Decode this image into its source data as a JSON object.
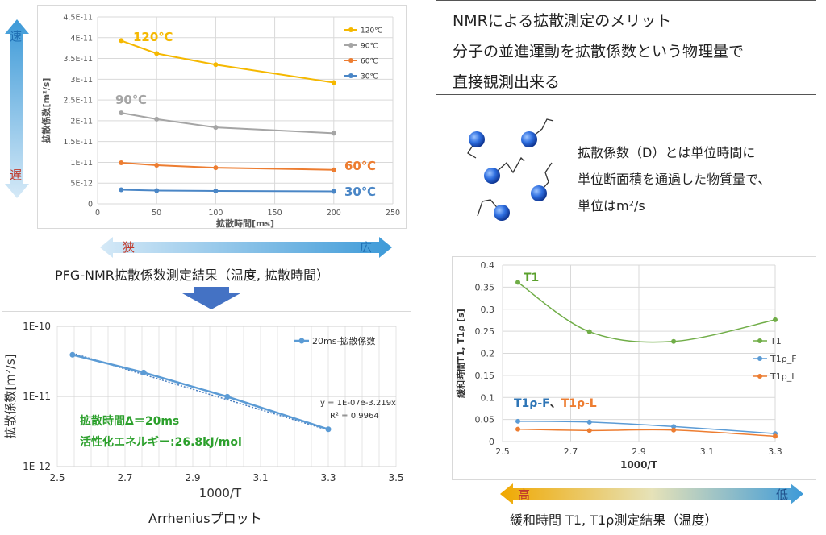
{
  "merit": {
    "title": "NMRによる拡散測定のメリット",
    "line1": "分子の並進運動を拡散係数という物理量で",
    "line2": "直接観測出来る"
  },
  "definition": {
    "line1": "拡散係数（D）とは単位時間に",
    "line2": "単位断面積を通過した物質量で、",
    "line3": "単位はm²/s"
  },
  "arrows": {
    "speed_fast": "速",
    "speed_slow": "遅",
    "time_narrow": "狭",
    "time_wide": "広",
    "temp_high": "高",
    "temp_low": "低"
  },
  "captions": {
    "pfg": "PFG-NMR拡散係数測定結果（温度, 拡散時間）",
    "arrhenius": "Arrheniusプロット",
    "relax": "緩和時間 T1, T1ρ測定結果（温度）"
  },
  "chart_data": [
    {
      "type": "line",
      "xlabel": "拡散時間[ms]",
      "ylabel": "拡散係数[m²/s]",
      "xlim": [
        0,
        250
      ],
      "ylim": [
        0,
        4.5e-11
      ],
      "xticks": [
        "0",
        "50",
        "100",
        "150",
        "200",
        "250"
      ],
      "yticks": [
        "0",
        "5E-12",
        "1E-11",
        "1.5E-11",
        "2E-11",
        "2.5E-11",
        "3E-11",
        "3.5E-11",
        "4E-11",
        "4.5E-11"
      ],
      "grid": true,
      "legend": "top-right",
      "x": [
        20,
        50,
        100,
        200
      ],
      "series": [
        {
          "name": "120℃",
          "label": "120℃",
          "color": "#f5b800",
          "values": [
            3.93e-11,
            3.62e-11,
            3.35e-11,
            2.92e-11
          ]
        },
        {
          "name": "90℃",
          "label": "90℃",
          "color": "#a5a5a5",
          "values": [
            2.19e-11,
            2.04e-11,
            1.84e-11,
            1.7e-11
          ]
        },
        {
          "name": "60℃",
          "label": "60℃",
          "color": "#ed7d31",
          "values": [
            9.9e-12,
            9.3e-12,
            8.7e-12,
            8.2e-12
          ]
        },
        {
          "name": "30℃",
          "label": "30℃",
          "color": "#4a86c6",
          "values": [
            3.4e-12,
            3.2e-12,
            3.1e-12,
            3e-12
          ]
        }
      ]
    },
    {
      "type": "scatter",
      "xlabel": "1000/T",
      "ylabel": "拡散係数[m²/s]",
      "xlim": [
        2.5,
        3.5
      ],
      "ylim": [
        1e-12,
        1e-10
      ],
      "yscale": "log",
      "xticks": [
        "2.5",
        "2.7",
        "2.9",
        "3.1",
        "3.3",
        "3.5"
      ],
      "yticks": [
        "1E-12",
        "1E-11",
        "1E-10"
      ],
      "grid": true,
      "legend": "top-right",
      "series": [
        {
          "name": "20ms-拡散係数",
          "color": "#5b9bd5",
          "x": [
            2.545,
            2.755,
            3.002,
            3.3
          ],
          "values": [
            3.93e-11,
            2.19e-11,
            9.9e-12,
            3.4e-12
          ]
        }
      ],
      "trendline": {
        "equation": "y = 1E-07e-3.219x",
        "r2": "R² = 0.9964"
      },
      "annotations": [
        "拡散時間Δ＝20ms",
        "活性化エネルギー:26.8kJ/mol"
      ]
    },
    {
      "type": "line",
      "xlabel": "1000/T",
      "ylabel": "緩和時間T1, T1ρ [s]",
      "xlim": [
        2.5,
        3.3
      ],
      "ylim": [
        0,
        0.4
      ],
      "xticks": [
        "2.5",
        "2.7",
        "2.9",
        "3.1",
        "3.3"
      ],
      "yticks": [
        "0",
        "0.05",
        "0.1",
        "0.15",
        "0.2",
        "0.25",
        "0.3",
        "0.35",
        "0.4"
      ],
      "grid": true,
      "legend": "right",
      "x": [
        2.545,
        2.755,
        3.002,
        3.3
      ],
      "series": [
        {
          "name": "T1",
          "color": "#70ad47",
          "values": [
            0.361,
            0.249,
            0.227,
            0.276
          ]
        },
        {
          "name": "T1ρ_F",
          "color": "#5b9bd5",
          "values": [
            0.046,
            0.044,
            0.034,
            0.018
          ]
        },
        {
          "name": "T1ρ_L",
          "color": "#ed7d31",
          "values": [
            0.028,
            0.025,
            0.026,
            0.012
          ]
        }
      ],
      "annotations": {
        "t1": "T1",
        "rho_f": "T1ρ-F",
        "sep": "、",
        "rho_l": "T1ρ-L"
      }
    }
  ]
}
